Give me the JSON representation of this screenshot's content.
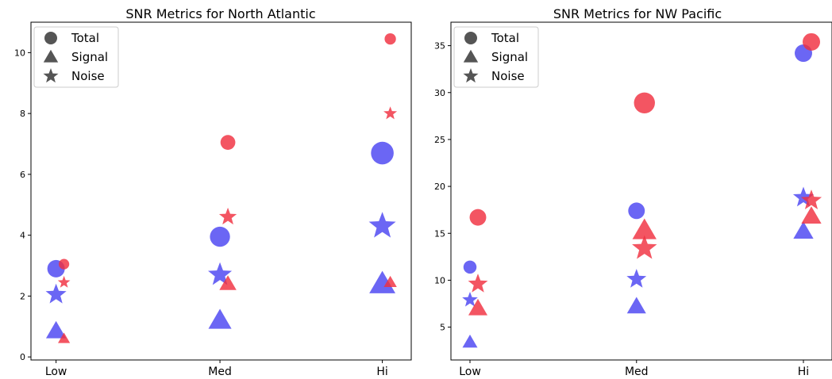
{
  "colors": {
    "blue": "#4b44f2",
    "red": "#f0303f",
    "legend_marker": "#555555",
    "axis": "#000000"
  },
  "chart_data": [
    {
      "type": "scatter",
      "title": "SNR Metrics for North Atlantic",
      "categories": [
        "Low",
        "Med",
        "Hi"
      ],
      "ylim": [
        -0.1,
        11.0
      ],
      "yticks": [
        0,
        2,
        4,
        6,
        8,
        10
      ],
      "grid": false,
      "legend": {
        "position": "top-left",
        "entries": [
          {
            "label": "Total",
            "marker": "circle"
          },
          {
            "label": "Signal",
            "marker": "triangle"
          },
          {
            "label": "Noise",
            "marker": "star"
          }
        ]
      },
      "series": [
        {
          "color": "blue",
          "metric": "Total",
          "marker": "circle",
          "points": [
            {
              "category": "Low",
              "y": 2.9,
              "size": 1.0
            },
            {
              "category": "Med",
              "y": 3.95,
              "size": 1.15
            },
            {
              "category": "Hi",
              "y": 6.7,
              "size": 1.3
            }
          ]
        },
        {
          "color": "blue",
          "metric": "Signal",
          "marker": "triangle",
          "points": [
            {
              "category": "Low",
              "y": 0.85,
              "size": 1.0
            },
            {
              "category": "Med",
              "y": 1.2,
              "size": 1.15
            },
            {
              "category": "Hi",
              "y": 2.4,
              "size": 1.3
            }
          ]
        },
        {
          "color": "blue",
          "metric": "Noise",
          "marker": "star",
          "points": [
            {
              "category": "Low",
              "y": 2.05,
              "size": 1.0
            },
            {
              "category": "Med",
              "y": 2.7,
              "size": 1.15
            },
            {
              "category": "Hi",
              "y": 4.3,
              "size": 1.3
            }
          ]
        },
        {
          "color": "red",
          "metric": "Total",
          "marker": "circle",
          "points": [
            {
              "category": "Low",
              "y": 3.05,
              "size": 0.6
            },
            {
              "category": "Med",
              "y": 7.05,
              "size": 0.85
            },
            {
              "category": "Hi",
              "y": 10.45,
              "size": 0.65
            }
          ]
        },
        {
          "color": "red",
          "metric": "Signal",
          "marker": "triangle",
          "points": [
            {
              "category": "Low",
              "y": 0.6,
              "size": 0.6
            },
            {
              "category": "Med",
              "y": 2.4,
              "size": 0.85
            },
            {
              "category": "Hi",
              "y": 2.45,
              "size": 0.65
            }
          ]
        },
        {
          "color": "red",
          "metric": "Noise",
          "marker": "star",
          "points": [
            {
              "category": "Low",
              "y": 2.45,
              "size": 0.6
            },
            {
              "category": "Med",
              "y": 4.6,
              "size": 0.85
            },
            {
              "category": "Hi",
              "y": 8.0,
              "size": 0.65
            }
          ]
        }
      ]
    },
    {
      "type": "scatter",
      "title": "SNR Metrics for NW Pacific",
      "categories": [
        "Low",
        "Med",
        "Hi"
      ],
      "ylim": [
        1.5,
        37.5
      ],
      "yticks": [
        5,
        10,
        15,
        20,
        25,
        30,
        35
      ],
      "grid": false,
      "legend": {
        "position": "top-left",
        "entries": [
          {
            "label": "Total",
            "marker": "circle"
          },
          {
            "label": "Signal",
            "marker": "triangle"
          },
          {
            "label": "Noise",
            "marker": "star"
          }
        ]
      },
      "series": [
        {
          "color": "blue",
          "metric": "Total",
          "marker": "circle",
          "points": [
            {
              "category": "Low",
              "y": 11.4,
              "size": 0.75
            },
            {
              "category": "Med",
              "y": 17.4,
              "size": 0.95
            },
            {
              "category": "Hi",
              "y": 34.2,
              "size": 1.0
            }
          ]
        },
        {
          "color": "blue",
          "metric": "Signal",
          "marker": "triangle",
          "points": [
            {
              "category": "Low",
              "y": 3.4,
              "size": 0.75
            },
            {
              "category": "Med",
              "y": 7.2,
              "size": 0.95
            },
            {
              "category": "Hi",
              "y": 15.2,
              "size": 1.0
            }
          ]
        },
        {
          "color": "blue",
          "metric": "Noise",
          "marker": "star",
          "points": [
            {
              "category": "Low",
              "y": 7.9,
              "size": 0.75
            },
            {
              "category": "Med",
              "y": 10.1,
              "size": 0.95
            },
            {
              "category": "Hi",
              "y": 18.8,
              "size": 1.0
            }
          ]
        },
        {
          "color": "red",
          "metric": "Total",
          "marker": "circle",
          "points": [
            {
              "category": "Low",
              "y": 16.7,
              "size": 0.95
            },
            {
              "category": "Med",
              "y": 28.9,
              "size": 1.2
            },
            {
              "category": "Hi",
              "y": 35.4,
              "size": 1.0
            }
          ]
        },
        {
          "color": "red",
          "metric": "Signal",
          "marker": "triangle",
          "points": [
            {
              "category": "Low",
              "y": 7.0,
              "size": 0.95
            },
            {
              "category": "Med",
              "y": 15.3,
              "size": 1.2
            },
            {
              "category": "Hi",
              "y": 16.8,
              "size": 1.0
            }
          ]
        },
        {
          "color": "red",
          "metric": "Noise",
          "marker": "star",
          "points": [
            {
              "category": "Low",
              "y": 9.6,
              "size": 0.95
            },
            {
              "category": "Med",
              "y": 13.4,
              "size": 1.2
            },
            {
              "category": "Hi",
              "y": 18.5,
              "size": 1.0
            }
          ]
        }
      ]
    }
  ]
}
